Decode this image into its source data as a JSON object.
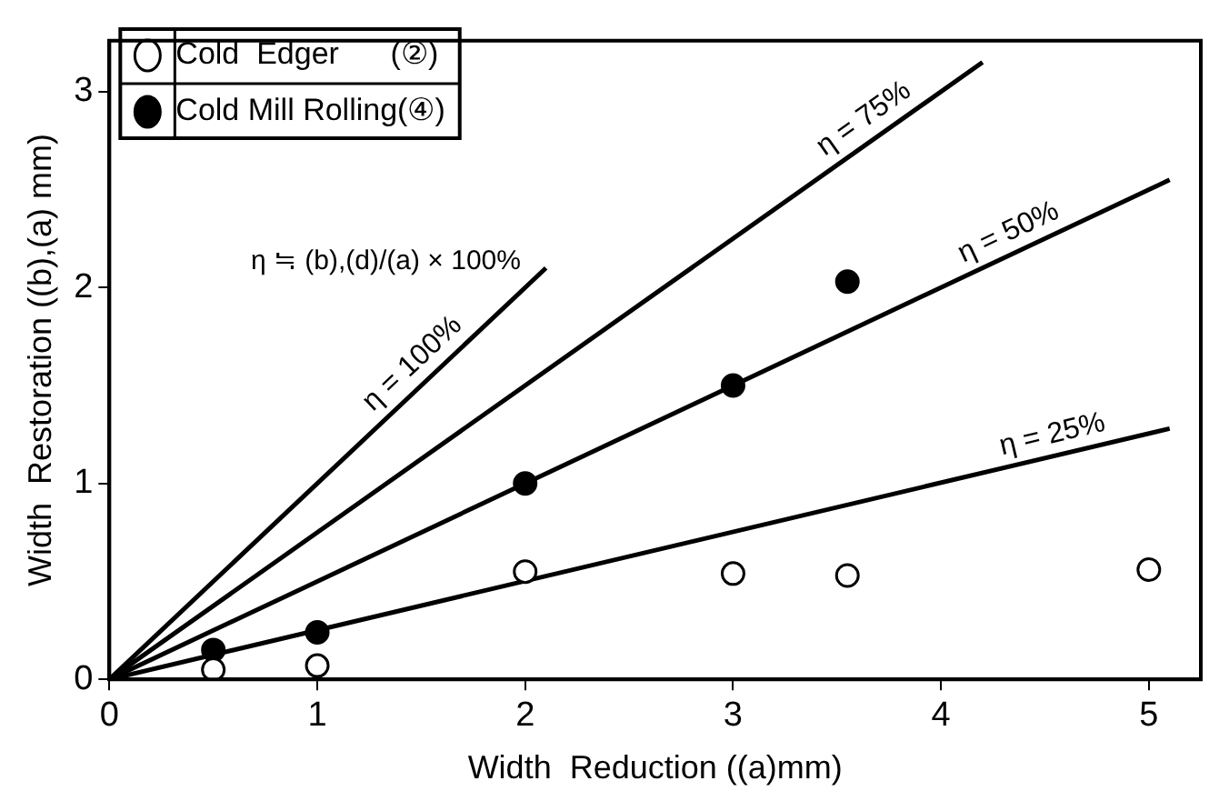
{
  "chart_data": {
    "type": "scatter",
    "xlabel": "Width  Reduction ((a)mm)",
    "ylabel": "Width  Restoration ((b),(a) mm)",
    "xlim": [
      0,
      5.25
    ],
    "xticks": [
      0,
      1,
      2,
      3,
      4,
      5
    ],
    "ylim": [
      0,
      3.26
    ],
    "yticks": [
      0,
      1,
      2,
      3
    ],
    "grid": false,
    "legend": "top left",
    "marker": "circle",
    "series": [
      {
        "name": "Cold  Edger      (②)",
        "type": "scatter",
        "color": "#ffffff",
        "x": [
          0.5,
          1,
          2,
          3,
          3.55,
          5
        ],
        "values": [
          0.05,
          0.07,
          0.55,
          0.54,
          0.53,
          0.56
        ]
      },
      {
        "name": "Cold Mill Rolling(④)",
        "type": "scatter",
        "color": "#000000",
        "x": [
          0.5,
          1,
          2,
          3,
          3.55
        ],
        "values": [
          0.15,
          0.24,
          1.0,
          1.5,
          2.03
        ]
      },
      {
        "type": "line",
        "color": "#000000",
        "marker": "none",
        "x": [
          0,
          2.1
        ],
        "values": [
          0,
          2.1
        ]
      },
      {
        "type": "line",
        "color": "#000000",
        "marker": "none",
        "x": [
          0,
          4.2
        ],
        "values": [
          0,
          3.15
        ]
      },
      {
        "type": "line",
        "color": "#000000",
        "marker": "none",
        "x": [
          0,
          5.1
        ],
        "values": [
          0,
          2.55
        ]
      },
      {
        "type": "line",
        "color": "#000000",
        "marker": "none",
        "x": [
          0,
          5.1
        ],
        "values": [
          0,
          1.28
        ]
      }
    ],
    "annotations": [
      {
        "text": "η = 100%",
        "x": 1.53,
        "y": 1.53
      },
      {
        "text": "η = 75%",
        "x": 3.69,
        "y": 2.77
      },
      {
        "text": "η = 50%",
        "x": 4.37,
        "y": 2.18
      },
      {
        "text": "η = 25%",
        "x": 4.56,
        "y": 1.14
      },
      "η ≒ (b),(d)/(a) × 100%"
    ]
  }
}
